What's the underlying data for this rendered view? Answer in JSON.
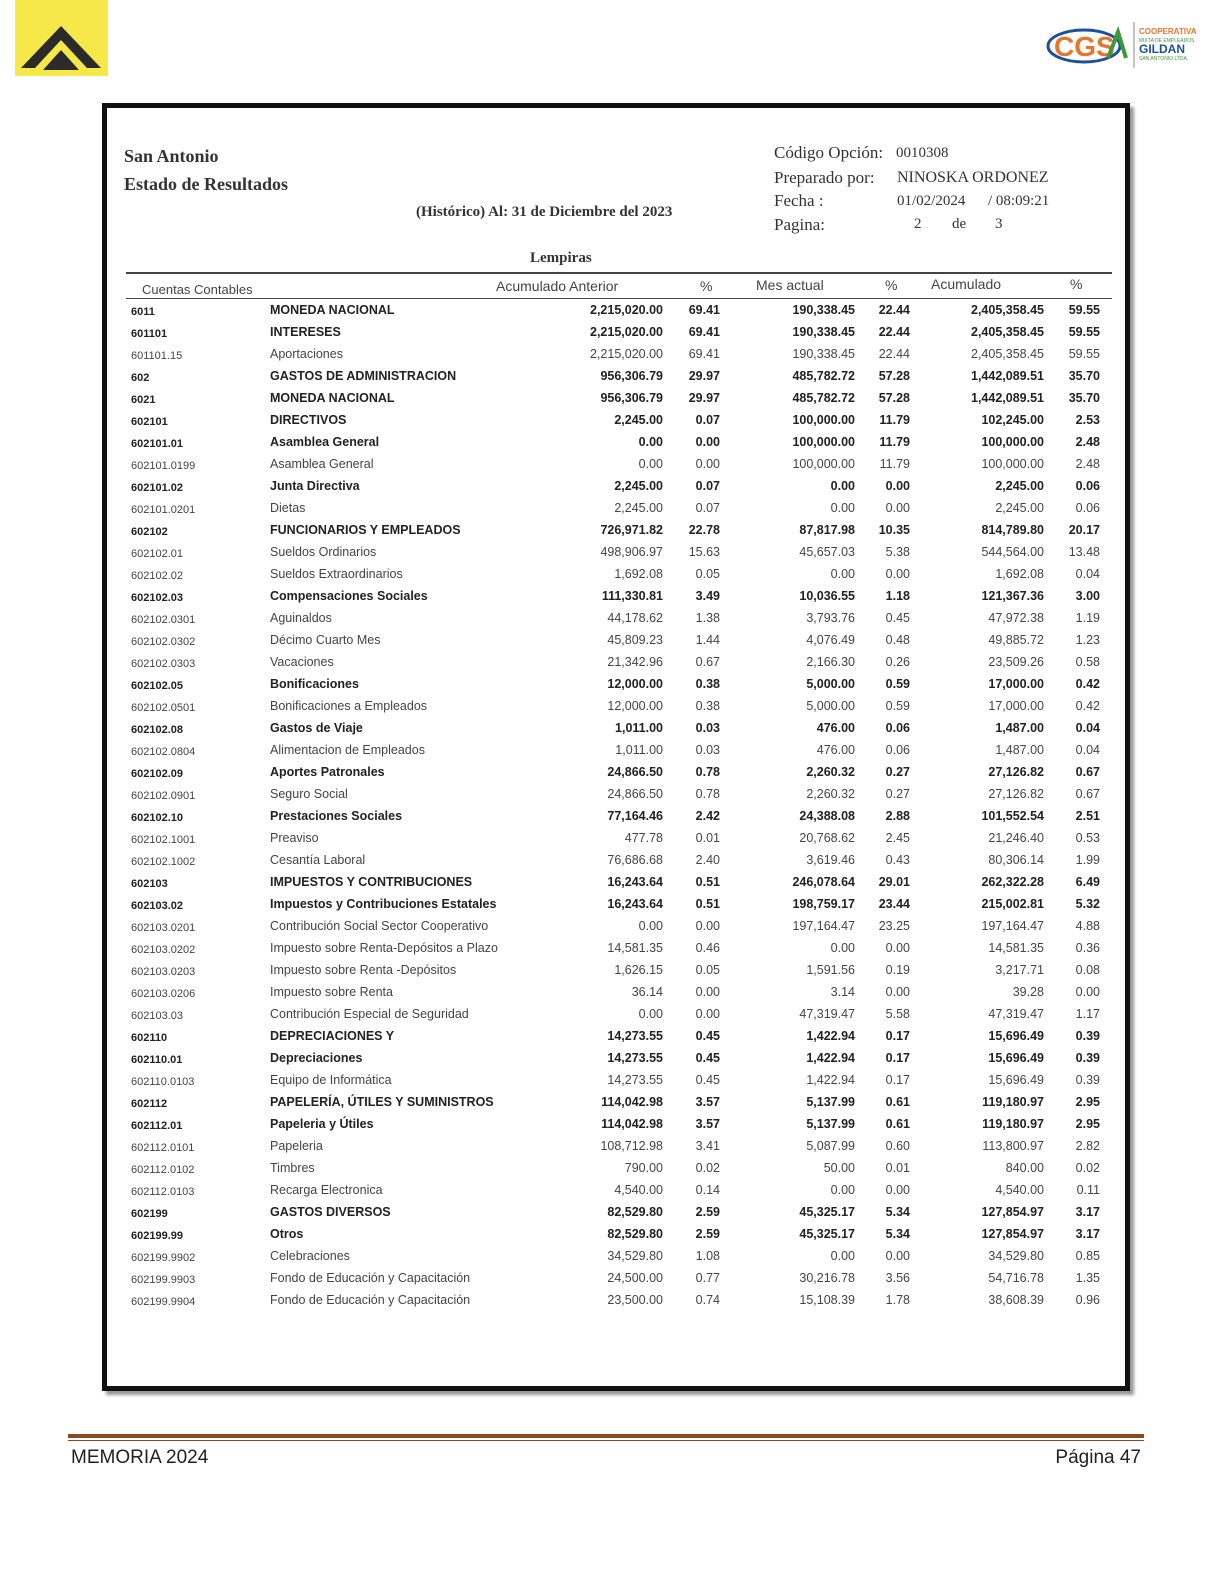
{
  "logos": {
    "left_brand": "chevron-logo",
    "right_text": "CGSA",
    "right_sub1": "COOPERATIVA",
    "right_sub2": "MIXTA DE EMPLEADOS",
    "right_sub3": "GILDAN",
    "right_sub4": "SAN ANTONIO LTDA."
  },
  "report": {
    "entity": "San Antonio",
    "title": "Estado de Resultados",
    "period": "(Histórico) Al: 31 de Diciembre del 2023",
    "codigo_label": "Código Opción:",
    "codigo_value": "0010308",
    "preparado_label": "Preparado por:",
    "preparado_value": "NINOSKA ORDONEZ",
    "fecha_label": "Fecha :",
    "fecha_value": "01/02/2024",
    "hora_value": "/  08:09:21",
    "pagina_label": "Pagina:",
    "pagina_value": "2",
    "pagina_de": "de",
    "pagina_total": "3",
    "currency": "Lempiras"
  },
  "columns": [
    "Cuentas Contables",
    "Acumulado Anterior",
    "%",
    "Mes actual",
    "%",
    "Acumulado",
    "%"
  ],
  "rows": [
    [
      "6011",
      "MONEDA NACIONAL",
      "2,215,020.00",
      "69.41",
      "190,338.45",
      "22.44",
      "2,405,358.45",
      "59.55",
      1
    ],
    [
      "601101",
      "INTERESES",
      "2,215,020.00",
      "69.41",
      "190,338.45",
      "22.44",
      "2,405,358.45",
      "59.55",
      1
    ],
    [
      "601101.15",
      "Aportaciones",
      "2,215,020.00",
      "69.41",
      "190,338.45",
      "22.44",
      "2,405,358.45",
      "59.55",
      0
    ],
    [
      "602",
      "GASTOS DE ADMINISTRACION",
      "956,306.79",
      "29.97",
      "485,782.72",
      "57.28",
      "1,442,089.51",
      "35.70",
      1
    ],
    [
      "6021",
      "MONEDA NACIONAL",
      "956,306.79",
      "29.97",
      "485,782.72",
      "57.28",
      "1,442,089.51",
      "35.70",
      1
    ],
    [
      "602101",
      "DIRECTIVOS",
      "2,245.00",
      "0.07",
      "100,000.00",
      "11.79",
      "102,245.00",
      "2.53",
      1
    ],
    [
      "602101.01",
      "Asamblea General",
      "0.00",
      "0.00",
      "100,000.00",
      "11.79",
      "100,000.00",
      "2.48",
      1
    ],
    [
      "602101.0199",
      "Asamblea  General",
      "0.00",
      "0.00",
      "100,000.00",
      "11.79",
      "100,000.00",
      "2.48",
      0
    ],
    [
      "602101.02",
      "Junta Directiva",
      "2,245.00",
      "0.07",
      "0.00",
      "0.00",
      "2,245.00",
      "0.06",
      1
    ],
    [
      "602101.0201",
      "Dietas",
      "2,245.00",
      "0.07",
      "0.00",
      "0.00",
      "2,245.00",
      "0.06",
      0
    ],
    [
      "602102",
      "FUNCIONARIOS Y EMPLEADOS",
      "726,971.82",
      "22.78",
      "87,817.98",
      "10.35",
      "814,789.80",
      "20.17",
      1
    ],
    [
      "602102.01",
      "Sueldos Ordinarios",
      "498,906.97",
      "15.63",
      "45,657.03",
      "5.38",
      "544,564.00",
      "13.48",
      0
    ],
    [
      "602102.02",
      "Sueldos Extraordinarios",
      "1,692.08",
      "0.05",
      "0.00",
      "0.00",
      "1,692.08",
      "0.04",
      0
    ],
    [
      "602102.03",
      "Compensaciones Sociales",
      "111,330.81",
      "3.49",
      "10,036.55",
      "1.18",
      "121,367.36",
      "3.00",
      1
    ],
    [
      "602102.0301",
      "Aguinaldos",
      "44,178.62",
      "1.38",
      "3,793.76",
      "0.45",
      "47,972.38",
      "1.19",
      0
    ],
    [
      "602102.0302",
      "Décimo Cuarto Mes",
      "45,809.23",
      "1.44",
      "4,076.49",
      "0.48",
      "49,885.72",
      "1.23",
      0
    ],
    [
      "602102.0303",
      "Vacaciones",
      "21,342.96",
      "0.67",
      "2,166.30",
      "0.26",
      "23,509.26",
      "0.58",
      0
    ],
    [
      "602102.05",
      "Bonificaciones",
      "12,000.00",
      "0.38",
      "5,000.00",
      "0.59",
      "17,000.00",
      "0.42",
      1
    ],
    [
      "602102.0501",
      "Bonificaciones a Empleados",
      "12,000.00",
      "0.38",
      "5,000.00",
      "0.59",
      "17,000.00",
      "0.42",
      0
    ],
    [
      "602102.08",
      "Gastos de Viaje",
      "1,011.00",
      "0.03",
      "476.00",
      "0.06",
      "1,487.00",
      "0.04",
      1
    ],
    [
      "602102.0804",
      "Alimentacion de Empleados",
      "1,011.00",
      "0.03",
      "476.00",
      "0.06",
      "1,487.00",
      "0.04",
      0
    ],
    [
      "602102.09",
      "Aportes Patronales",
      "24,866.50",
      "0.78",
      "2,260.32",
      "0.27",
      "27,126.82",
      "0.67",
      1
    ],
    [
      "602102.0901",
      "Seguro Social",
      "24,866.50",
      "0.78",
      "2,260.32",
      "0.27",
      "27,126.82",
      "0.67",
      0
    ],
    [
      "602102.10",
      "Prestaciones Sociales",
      "77,164.46",
      "2.42",
      "24,388.08",
      "2.88",
      "101,552.54",
      "2.51",
      1
    ],
    [
      "602102.1001",
      "Preaviso",
      "477.78",
      "0.01",
      "20,768.62",
      "2.45",
      "21,246.40",
      "0.53",
      0
    ],
    [
      "602102.1002",
      "Cesantía Laboral",
      "76,686.68",
      "2.40",
      "3,619.46",
      "0.43",
      "80,306.14",
      "1.99",
      0
    ],
    [
      "602103",
      "IMPUESTOS Y CONTRIBUCIONES",
      "16,243.64",
      "0.51",
      "246,078.64",
      "29.01",
      "262,322.28",
      "6.49",
      1
    ],
    [
      "602103.02",
      "Impuestos y Contribuciones Estatales",
      "16,243.64",
      "0.51",
      "198,759.17",
      "23.44",
      "215,002.81",
      "5.32",
      1
    ],
    [
      "602103.0201",
      "Contribución Social Sector Cooperativo",
      "0.00",
      "0.00",
      "197,164.47",
      "23.25",
      "197,164.47",
      "4.88",
      0
    ],
    [
      "602103.0202",
      "Impuesto sobre Renta-Depósitos a Plazo",
      "14,581.35",
      "0.46",
      "0.00",
      "0.00",
      "14,581.35",
      "0.36",
      0
    ],
    [
      "602103.0203",
      "Impuesto sobre Renta -Depósitos",
      "1,626.15",
      "0.05",
      "1,591.56",
      "0.19",
      "3,217.71",
      "0.08",
      0
    ],
    [
      "602103.0206",
      "Impuesto sobre Renta",
      "36.14",
      "0.00",
      "3.14",
      "0.00",
      "39.28",
      "0.00",
      0
    ],
    [
      "602103.03",
      "Contribución Especial de Seguridad",
      "0.00",
      "0.00",
      "47,319.47",
      "5.58",
      "47,319.47",
      "1.17",
      0
    ],
    [
      "602110",
      "DEPRECIACIONES Y",
      "14,273.55",
      "0.45",
      "1,422.94",
      "0.17",
      "15,696.49",
      "0.39",
      1
    ],
    [
      "602110.01",
      "Depreciaciones",
      "14,273.55",
      "0.45",
      "1,422.94",
      "0.17",
      "15,696.49",
      "0.39",
      1
    ],
    [
      "602110.0103",
      "Equipo de Informática",
      "14,273.55",
      "0.45",
      "1,422.94",
      "0.17",
      "15,696.49",
      "0.39",
      0
    ],
    [
      "602112",
      "PAPELERÍA, ÚTILES Y SUMINISTROS",
      "114,042.98",
      "3.57",
      "5,137.99",
      "0.61",
      "119,180.97",
      "2.95",
      1
    ],
    [
      "602112.01",
      "Papeleria y Útiles",
      "114,042.98",
      "3.57",
      "5,137.99",
      "0.61",
      "119,180.97",
      "2.95",
      1
    ],
    [
      "602112.0101",
      "Papeleria",
      "108,712.98",
      "3.41",
      "5,087.99",
      "0.60",
      "113,800.97",
      "2.82",
      0
    ],
    [
      "602112.0102",
      "Timbres",
      "790.00",
      "0.02",
      "50.00",
      "0.01",
      "840.00",
      "0.02",
      0
    ],
    [
      "602112.0103",
      "Recarga Electronica",
      "4,540.00",
      "0.14",
      "0.00",
      "0.00",
      "4,540.00",
      "0.11",
      0
    ],
    [
      "602199",
      "GASTOS DIVERSOS",
      "82,529.80",
      "2.59",
      "45,325.17",
      "5.34",
      "127,854.97",
      "3.17",
      1
    ],
    [
      "602199.99",
      "Otros",
      "82,529.80",
      "2.59",
      "45,325.17",
      "5.34",
      "127,854.97",
      "3.17",
      1
    ],
    [
      "602199.9902",
      "Celebraciones",
      "34,529.80",
      "1.08",
      "0.00",
      "0.00",
      "34,529.80",
      "0.85",
      0
    ],
    [
      "602199.9903",
      "Fondo de Educación y Capacitación",
      "24,500.00",
      "0.77",
      "30,216.78",
      "3.56",
      "54,716.78",
      "1.35",
      0
    ],
    [
      "602199.9904",
      "Fondo de Educación y Capacitación",
      "23,500.00",
      "0.74",
      "15,108.39",
      "1.78",
      "38,608.39",
      "0.96",
      0
    ]
  ],
  "footer": {
    "left": "MEMORIA 2024",
    "right": "Página 47"
  },
  "colors": {
    "logo_yellow": "#f7e84a",
    "footer_rule": "#8a4a1d",
    "cgsa_blue": "#1f4e9c",
    "cgsa_orange": "#e8742a",
    "cgsa_green": "#3a9a3a"
  }
}
